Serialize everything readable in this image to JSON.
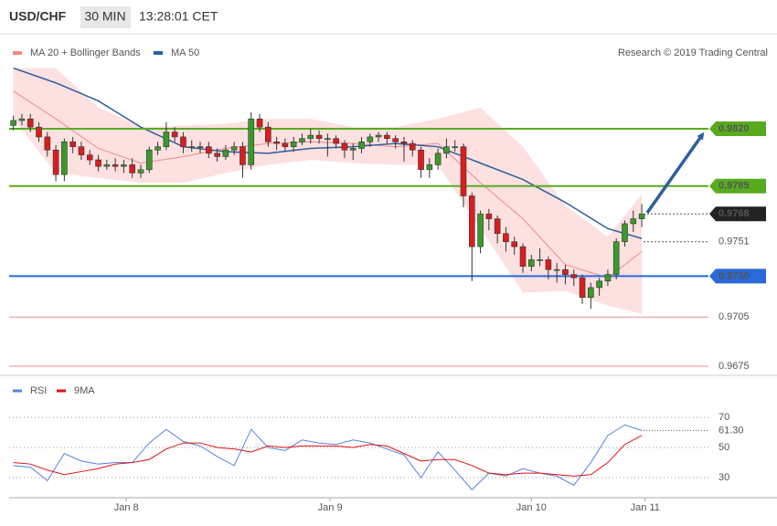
{
  "header": {
    "symbol": "USD/CHF",
    "interval": "30 MIN",
    "time": "13:28:01 CET"
  },
  "chart_data": [
    {
      "type": "candlestick",
      "credit": "Research © 2019 Trading Central",
      "up_color": "#3a9a2a",
      "down_color": "#d81e1e",
      "open": [
        0.9822,
        0.9825,
        0.9826,
        0.9821,
        0.9815,
        0.9807,
        0.9792,
        0.9812,
        0.9809,
        0.9804,
        0.9801,
        0.9797,
        0.9798,
        0.9797,
        0.9798,
        0.9793,
        0.9795,
        0.9807,
        0.9809,
        0.9818,
        0.9815,
        0.9809,
        0.9809,
        0.9809,
        0.9805,
        0.9803,
        0.9807,
        0.9809,
        0.9798,
        0.9826,
        0.9821,
        0.9812,
        0.9811,
        0.9809,
        0.9812,
        0.9814,
        0.9816,
        0.9814,
        0.9814,
        0.9811,
        0.9807,
        0.9808,
        0.9812,
        0.9815,
        0.9816,
        0.9814,
        0.9812,
        0.9811,
        0.9807,
        0.9795,
        0.9798,
        0.9805,
        0.9809,
        0.9809,
        0.9779,
        0.9748,
        0.9768,
        0.9765,
        0.9756,
        0.9751,
        0.9748,
        0.9736,
        0.974,
        0.974,
        0.9734,
        0.9734,
        0.9731,
        0.9729,
        0.9717,
        0.9723,
        0.9727,
        0.9731,
        0.9751,
        0.9762,
        0.9765
      ],
      "high": [
        0.9828,
        0.9829,
        0.9829,
        0.9824,
        0.9818,
        0.981,
        0.9814,
        0.9815,
        0.9812,
        0.9807,
        0.9804,
        0.9801,
        0.9802,
        0.9801,
        0.9802,
        0.9798,
        0.9809,
        0.9812,
        0.9824,
        0.9821,
        0.9818,
        0.9813,
        0.9812,
        0.9812,
        0.9808,
        0.981,
        0.9812,
        0.9812,
        0.983,
        0.9829,
        0.9824,
        0.9815,
        0.9814,
        0.9815,
        0.9817,
        0.982,
        0.9819,
        0.9817,
        0.9816,
        0.9813,
        0.9811,
        0.9815,
        0.9817,
        0.9818,
        0.9818,
        0.9816,
        0.9815,
        0.9813,
        0.9809,
        0.9802,
        0.9808,
        0.9814,
        0.9813,
        0.9811,
        0.9781,
        0.977,
        0.9771,
        0.9767,
        0.976,
        0.9754,
        0.975,
        0.9743,
        0.9747,
        0.9742,
        0.9738,
        0.9737,
        0.9734,
        0.9731,
        0.9726,
        0.9729,
        0.9734,
        0.9753,
        0.9764,
        0.977,
        0.9774
      ],
      "low": [
        0.9819,
        0.9822,
        0.9818,
        0.9812,
        0.9803,
        0.9788,
        0.9788,
        0.9805,
        0.9801,
        0.9798,
        0.9794,
        0.9795,
        0.9794,
        0.9793,
        0.979,
        0.979,
        0.9793,
        0.9804,
        0.9807,
        0.9812,
        0.9805,
        0.9806,
        0.9805,
        0.9802,
        0.98,
        0.9801,
        0.9804,
        0.979,
        0.9795,
        0.9818,
        0.9809,
        0.9807,
        0.9806,
        0.9806,
        0.981,
        0.9811,
        0.9811,
        0.9803,
        0.9808,
        0.9802,
        0.9801,
        0.9805,
        0.9809,
        0.9812,
        0.9811,
        0.9808,
        0.98,
        0.9803,
        0.979,
        0.979,
        0.9795,
        0.9802,
        0.9806,
        0.9772,
        0.9727,
        0.9744,
        0.9758,
        0.975,
        0.9745,
        0.9743,
        0.9732,
        0.9733,
        0.9736,
        0.9728,
        0.9726,
        0.9725,
        0.9724,
        0.9713,
        0.971,
        0.9718,
        0.9724,
        0.9728,
        0.9748,
        0.9757,
        0.976
      ],
      "close": [
        0.9825,
        0.9826,
        0.9821,
        0.9815,
        0.9807,
        0.9792,
        0.9812,
        0.9809,
        0.9804,
        0.9801,
        0.9797,
        0.9798,
        0.9797,
        0.9798,
        0.9793,
        0.9795,
        0.9807,
        0.9809,
        0.9818,
        0.9815,
        0.9809,
        0.9809,
        0.9809,
        0.9805,
        0.9803,
        0.9807,
        0.9809,
        0.9798,
        0.9826,
        0.9821,
        0.9812,
        0.9811,
        0.9809,
        0.9812,
        0.9814,
        0.9816,
        0.9814,
        0.9814,
        0.9811,
        0.9807,
        0.9808,
        0.9812,
        0.9815,
        0.9816,
        0.9814,
        0.9812,
        0.9811,
        0.9807,
        0.9795,
        0.9798,
        0.9805,
        0.9809,
        0.9809,
        0.9779,
        0.9748,
        0.9768,
        0.9765,
        0.9756,
        0.9751,
        0.9748,
        0.9736,
        0.974,
        0.974,
        0.9734,
        0.9734,
        0.9731,
        0.9729,
        0.9717,
        0.9723,
        0.9727,
        0.9731,
        0.9751,
        0.9762,
        0.9765,
        0.9768
      ],
      "overlays": [
        {
          "name": "MA 20 + Bollinger Bands",
          "color": "#f08a8a",
          "x": [
            0,
            5,
            10,
            15,
            20,
            25,
            30,
            35,
            40,
            45,
            50,
            55,
            60,
            65,
            70,
            74
          ],
          "values": [
            0.9843,
            0.9826,
            0.9808,
            0.9799,
            0.9803,
            0.9808,
            0.9811,
            0.9812,
            0.9811,
            0.9809,
            0.9811,
            0.9787,
            0.9765,
            0.9737,
            0.9729,
            0.9745
          ],
          "upper": [
            0.9857,
            0.9857,
            0.9833,
            0.9821,
            0.9822,
            0.9823,
            0.9826,
            0.9826,
            0.9821,
            0.9821,
            0.9826,
            0.9833,
            0.9809,
            0.9773,
            0.9754,
            0.978
          ],
          "lower": [
            0.9826,
            0.9793,
            0.979,
            0.9787,
            0.9787,
            0.9793,
            0.9798,
            0.9801,
            0.9799,
            0.9798,
            0.9798,
            0.9759,
            0.972,
            0.9721,
            0.9712,
            0.9707
          ]
        },
        {
          "name": "MA 50",
          "color": "#2d5f9e",
          "x": [
            0,
            5,
            10,
            15,
            20,
            25,
            30,
            35,
            40,
            45,
            50,
            55,
            60,
            65,
            70,
            74
          ],
          "values": [
            0.9857,
            0.9848,
            0.9837,
            0.9821,
            0.9809,
            0.9806,
            0.9805,
            0.9808,
            0.9809,
            0.9811,
            0.9809,
            0.9799,
            0.9789,
            0.9775,
            0.9759,
            0.9753
          ]
        }
      ],
      "levels": [
        {
          "value": 0.982,
          "label": "0.9820",
          "color": "#58ab1e",
          "style": "solid",
          "box": true
        },
        {
          "value": 0.9785,
          "label": "0.9785",
          "color": "#58ab1e",
          "style": "solid",
          "box": true
        },
        {
          "value": 0.9768,
          "label": "0.9768",
          "color": "#222222",
          "style": "dotted",
          "box": true
        },
        {
          "value": 0.9751,
          "label": "0.9751",
          "color": "#3a66b0",
          "style": "dotted",
          "box": false
        },
        {
          "value": 0.973,
          "label": "0.9730",
          "color": "#2a6ad8",
          "style": "solid",
          "box": true
        },
        {
          "value": 0.9705,
          "label": "0.9705",
          "color": "#d42020",
          "style": "solid",
          "box": false
        },
        {
          "value": 0.9675,
          "label": "0.9675",
          "color": "#d42020",
          "style": "solid",
          "box": false
        }
      ],
      "ylim": [
        0.967,
        0.98735
      ],
      "xlim": [
        -0.5,
        75.5
      ],
      "xticks": [
        {
          "value": 13.3,
          "label": "Jan 8"
        },
        {
          "value": 37.3,
          "label": "Jan 9"
        },
        {
          "value": 61.0,
          "label": "Jan 10"
        },
        {
          "value": 74.4,
          "label": "Jan 11"
        }
      ]
    },
    {
      "type": "line",
      "series": [
        {
          "name": "RSI",
          "color": "#5a82e0",
          "x": [
            0,
            2,
            4,
            6,
            8,
            10,
            12,
            14,
            16,
            18,
            20,
            22,
            24,
            26,
            28,
            30,
            32,
            34,
            36,
            38,
            40,
            42,
            44,
            46,
            48,
            50,
            52,
            54,
            56,
            58,
            60,
            62,
            64,
            66,
            68,
            70,
            72,
            74
          ],
          "values": [
            38,
            37,
            28,
            46,
            41,
            39,
            40,
            40,
            53,
            62,
            54,
            51,
            44,
            38,
            62,
            50,
            48,
            55,
            53,
            52,
            55,
            53,
            49,
            45,
            30,
            47,
            35,
            22,
            33,
            31,
            36,
            33,
            31,
            25,
            40,
            58,
            65,
            61.3
          ]
        },
        {
          "name": "9MA",
          "color": "#e01010",
          "x": [
            0,
            2,
            4,
            6,
            8,
            10,
            12,
            14,
            16,
            18,
            20,
            22,
            24,
            26,
            28,
            30,
            32,
            34,
            36,
            38,
            40,
            42,
            44,
            46,
            48,
            50,
            52,
            54,
            56,
            58,
            60,
            62,
            64,
            66,
            68,
            70,
            72,
            74
          ],
          "values": [
            40,
            39,
            35,
            32,
            34,
            36,
            39,
            40,
            42,
            49,
            53,
            53,
            50,
            49,
            47,
            51,
            50,
            51,
            51,
            51,
            50,
            52,
            51,
            46,
            41,
            42,
            42,
            38,
            33,
            32,
            33,
            33,
            32,
            31,
            32,
            40,
            52,
            58
          ]
        }
      ],
      "last_value": {
        "value": 61.3,
        "label": "61.30"
      },
      "ylim": [
        16.7,
        80.3
      ],
      "yticks": [
        30,
        50,
        70
      ],
      "xlim": [
        -0.5,
        75.5
      ]
    }
  ]
}
